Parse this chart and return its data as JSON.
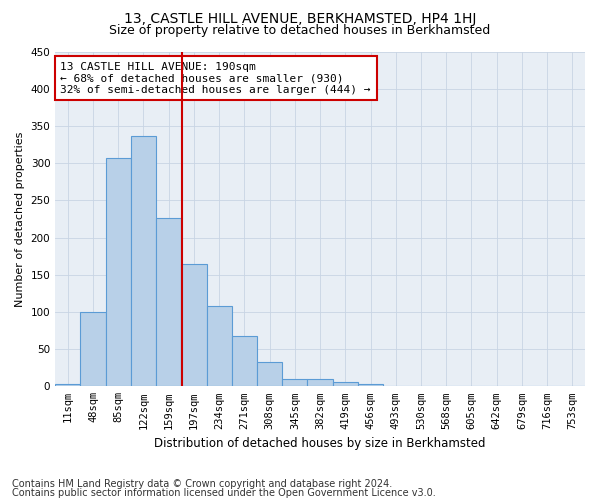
{
  "title": "13, CASTLE HILL AVENUE, BERKHAMSTED, HP4 1HJ",
  "subtitle": "Size of property relative to detached houses in Berkhamsted",
  "xlabel": "Distribution of detached houses by size in Berkhamsted",
  "ylabel": "Number of detached properties",
  "footer_line1": "Contains HM Land Registry data © Crown copyright and database right 2024.",
  "footer_line2": "Contains public sector information licensed under the Open Government Licence v3.0.",
  "bin_labels": [
    "11sqm",
    "48sqm",
    "85sqm",
    "122sqm",
    "159sqm",
    "197sqm",
    "234sqm",
    "271sqm",
    "308sqm",
    "345sqm",
    "382sqm",
    "419sqm",
    "456sqm",
    "493sqm",
    "530sqm",
    "568sqm",
    "605sqm",
    "642sqm",
    "679sqm",
    "716sqm",
    "753sqm"
  ],
  "bar_values": [
    3,
    100,
    307,
    336,
    226,
    165,
    108,
    67,
    32,
    10,
    10,
    6,
    3,
    0,
    0,
    0,
    1,
    0,
    0,
    0,
    1
  ],
  "bar_color": "#b8d0e8",
  "bar_edgecolor": "#5b9bd5",
  "grid_color": "#c8d4e4",
  "background_color": "#e8eef5",
  "annotation_line1": "13 CASTLE HILL AVENUE: 190sqm",
  "annotation_line2": "← 68% of detached houses are smaller (930)",
  "annotation_line3": "32% of semi-detached houses are larger (444) →",
  "annotation_box_color": "#cc0000",
  "vline_x_index": 4.52,
  "vline_color": "#cc0000",
  "ylim": [
    0,
    450
  ],
  "yticks": [
    0,
    50,
    100,
    150,
    200,
    250,
    300,
    350,
    400,
    450
  ],
  "title_fontsize": 10,
  "subtitle_fontsize": 9,
  "ylabel_fontsize": 8,
  "xlabel_fontsize": 8.5,
  "tick_fontsize": 7.5,
  "annotation_fontsize": 8,
  "footer_fontsize": 7
}
